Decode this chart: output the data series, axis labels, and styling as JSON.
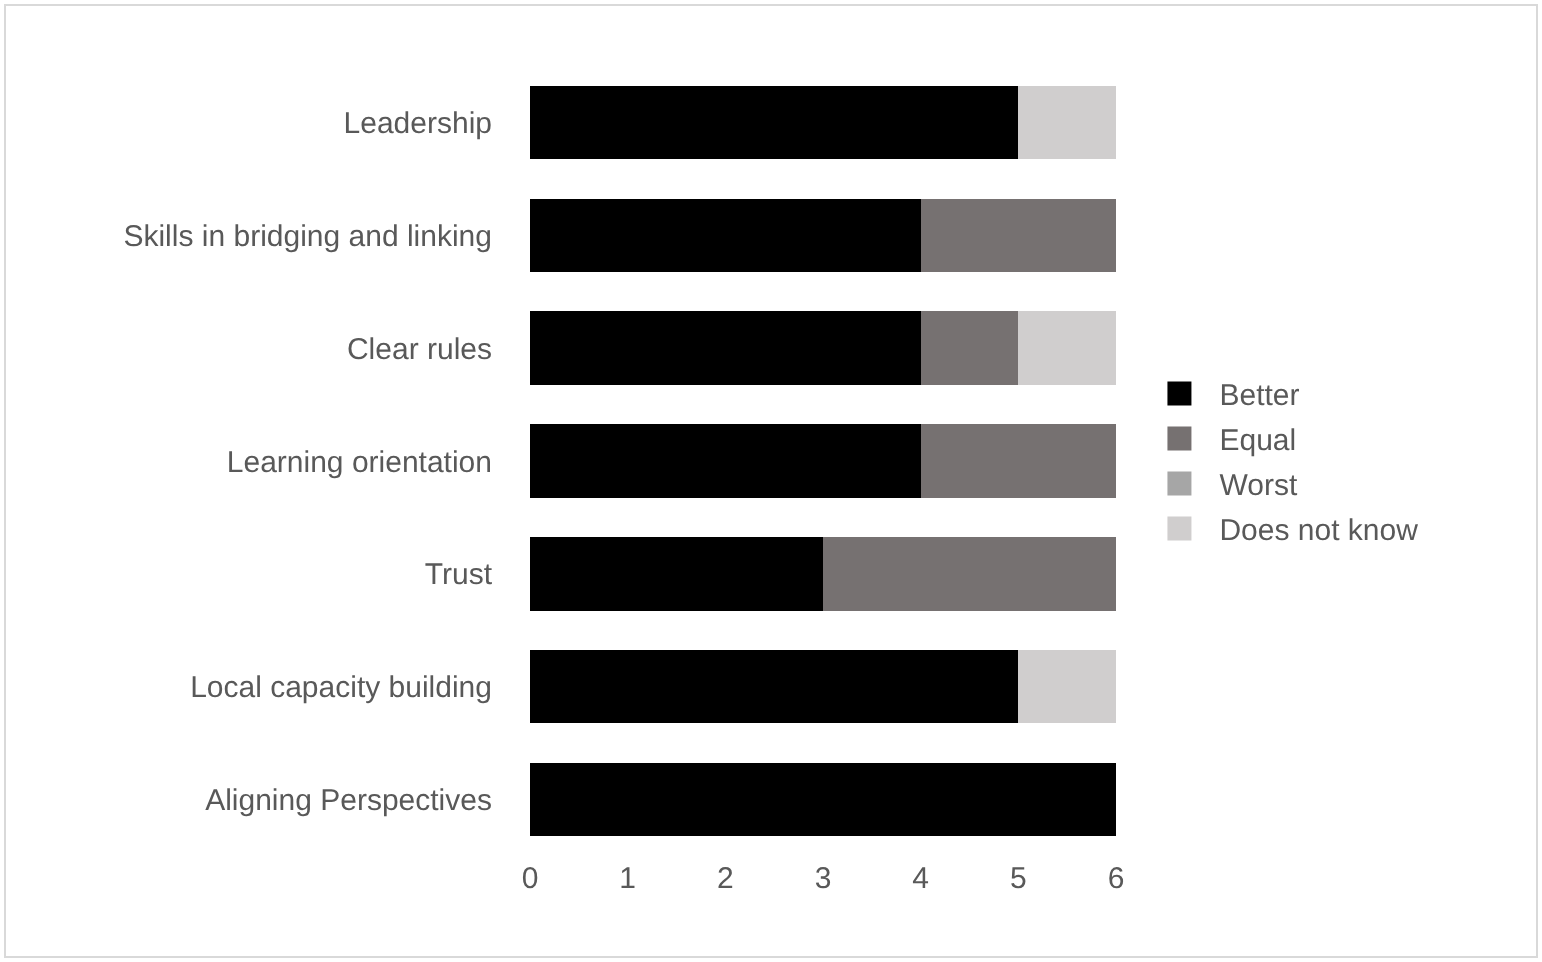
{
  "chart_data": {
    "type": "bar",
    "orientation": "horizontal",
    "stacked": true,
    "categories": [
      "Leadership",
      "Skills in bridging and linking",
      "Clear rules",
      "Learning orientation",
      "Trust",
      "Local capacity building",
      "Aligning Perspectives"
    ],
    "series": [
      {
        "name": "Better",
        "color": "#000000",
        "values": [
          5,
          4,
          4,
          4,
          3,
          5,
          6
        ]
      },
      {
        "name": "Equal",
        "color": "#767171",
        "values": [
          0,
          2,
          1,
          2,
          3,
          0,
          0
        ]
      },
      {
        "name": "Worst",
        "color": "#a6a6a6",
        "values": [
          0,
          0,
          0,
          0,
          0,
          0,
          0
        ]
      },
      {
        "name": "Does not know",
        "color": "#d0cece",
        "values": [
          1,
          0,
          1,
          0,
          0,
          1,
          0
        ]
      }
    ],
    "xlim": [
      0,
      6
    ],
    "xticks": [
      0,
      1,
      2,
      3,
      4,
      5,
      6
    ],
    "grid": false,
    "legend": "right"
  }
}
